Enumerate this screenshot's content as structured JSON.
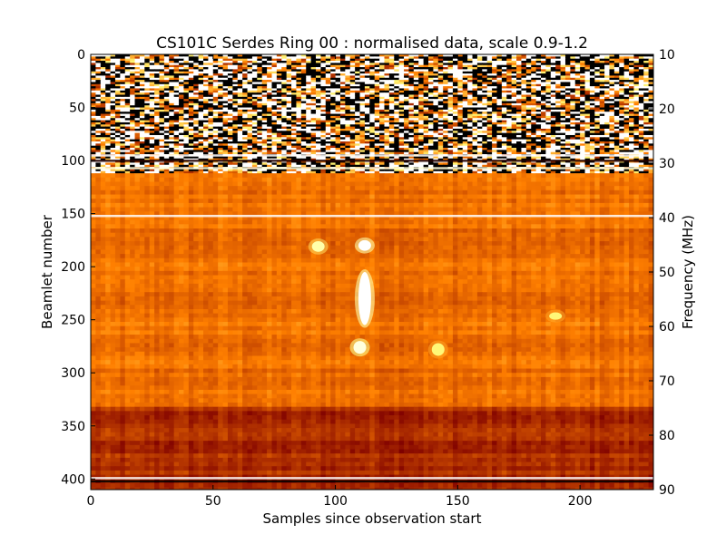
{
  "chart_data": {
    "type": "heatmap",
    "title": "CS101C Serdes Ring 00 : normalised data, scale 0.9-1.2",
    "xlabel": "Samples since observation start",
    "ylabel": "Beamlet number",
    "y2label": "Frequency (MHz)",
    "xlim": [
      0,
      230
    ],
    "ylim": [
      0,
      410
    ],
    "y2lim": [
      10,
      90
    ],
    "y_inverted": true,
    "x_ticks": [
      0,
      50,
      100,
      150,
      200
    ],
    "x_tick_labels": [
      "0",
      "50",
      "100",
      "150",
      "200"
    ],
    "y_ticks": [
      0,
      50,
      100,
      150,
      200,
      250,
      300,
      350,
      400
    ],
    "y_tick_labels": [
      "0",
      "50",
      "100",
      "150",
      "200",
      "250",
      "300",
      "350",
      "400"
    ],
    "y2_ticks": [
      10,
      20,
      30,
      40,
      50,
      60,
      70,
      80,
      90
    ],
    "y2_tick_labels": [
      "10",
      "20",
      "30",
      "40",
      "50",
      "60",
      "70",
      "80",
      "90"
    ],
    "color_scale": [
      0.9,
      1.2
    ],
    "colormap": "afmhot",
    "regions": [
      {
        "name": "noisy-rfi-band",
        "beamlets": [
          0,
          112
        ],
        "level": "saturated"
      },
      {
        "name": "mid-band",
        "beamlets": [
          112,
          330
        ],
        "level": 1.04
      },
      {
        "name": "quiet-band",
        "beamlets": [
          330,
          410
        ],
        "level": 1.0
      }
    ],
    "horizontal_lines": [
      {
        "beamlet": 95,
        "level": 1.2
      },
      {
        "beamlet": 100,
        "level": 0.92
      },
      {
        "beamlet": 107,
        "level": 1.18
      },
      {
        "beamlet": 152,
        "level": 1.2
      },
      {
        "beamlet": 399,
        "level": 1.2
      },
      {
        "beamlet": 402,
        "level": 0.9
      }
    ],
    "bright_features": [
      {
        "sample": 112,
        "beamlet_start": 175,
        "beamlet_end": 185,
        "level": 1.2
      },
      {
        "sample": 112,
        "beamlet_start": 205,
        "beamlet_end": 255,
        "level": 1.2
      },
      {
        "sample": 110,
        "beamlet_start": 270,
        "beamlet_end": 282,
        "level": 1.18
      },
      {
        "sample": 93,
        "beamlet_start": 176,
        "beamlet_end": 186,
        "level": 1.15
      },
      {
        "sample": 142,
        "beamlet_start": 272,
        "beamlet_end": 284,
        "level": 1.12
      },
      {
        "sample": 190,
        "beamlet_start": 243,
        "beamlet_end": 250,
        "level": 1.12
      }
    ]
  }
}
